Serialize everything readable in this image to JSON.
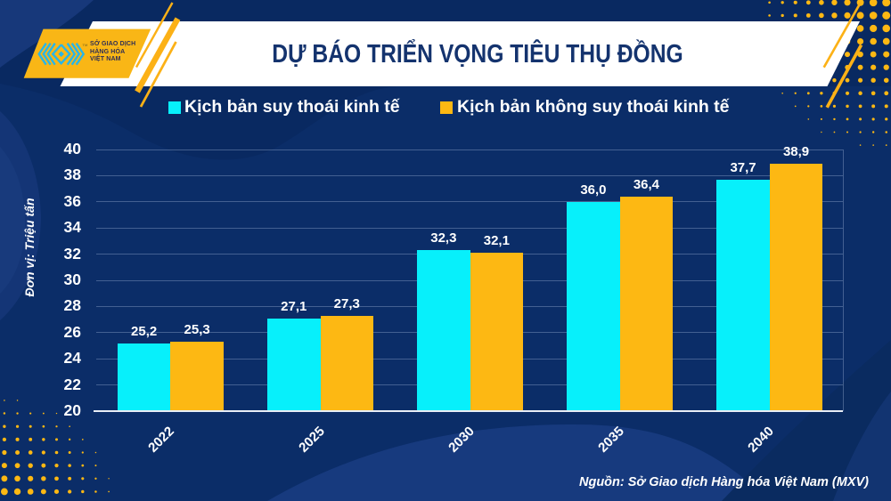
{
  "header": {
    "title": "DỰ BÁO TRIỂN VỌNG TIÊU THỤ ĐỒNG"
  },
  "logo": {
    "line1": "SỞ GIAO DỊCH",
    "line2": "HÀNG HÓA",
    "line3": "VIỆT NAM",
    "trademark": "TM"
  },
  "legend": {
    "items": [
      {
        "label": "Kịch bản suy thoái kinh tế",
        "color": "#07f0fb"
      },
      {
        "label": "Kịch bản không suy thoái kinh tế",
        "color": "#fdb813"
      }
    ]
  },
  "source": "Nguồn: Sở Giao dịch Hàng hóa Việt Nam (MXV)",
  "colors": {
    "background": "#0b2d68",
    "background_dark": "#092961",
    "background_light": "#173a7e",
    "banner": "#ffffff",
    "title_text": "#14336e",
    "cyan": "#07f0fb",
    "yellow": "#fdb813",
    "logo_yellow": "#f9b616",
    "logo_mark": "#29b5e8"
  },
  "chart_data": {
    "type": "bar",
    "title": "DỰ BÁO TRIỂN VỌNG TIÊU THỤ ĐỒNG",
    "categories": [
      "2022",
      "2025",
      "2030",
      "2035",
      "2040"
    ],
    "series": [
      {
        "name": "Kịch bản suy thoái kinh tế",
        "color": "#07f0fb",
        "values": [
          25.2,
          27.1,
          32.3,
          36.0,
          37.7
        ],
        "labels": [
          "25,2",
          "27,1",
          "32,3",
          "36,0",
          "37,7"
        ]
      },
      {
        "name": "Kịch bản không suy thoái kinh tế",
        "color": "#fdb813",
        "values": [
          25.3,
          27.3,
          32.1,
          36.4,
          38.9
        ],
        "labels": [
          "25,3",
          "27,3",
          "32,1",
          "36,4",
          "38,9"
        ]
      }
    ],
    "xlabel": "",
    "ylabel": "Đơn vị: Triệu tấn",
    "ylim": [
      20,
      40
    ],
    "yticks": [
      "20",
      "22",
      "24",
      "26",
      "28",
      "30",
      "32",
      "34",
      "36",
      "38",
      "40"
    ],
    "grid": true,
    "legend_position": "top"
  }
}
